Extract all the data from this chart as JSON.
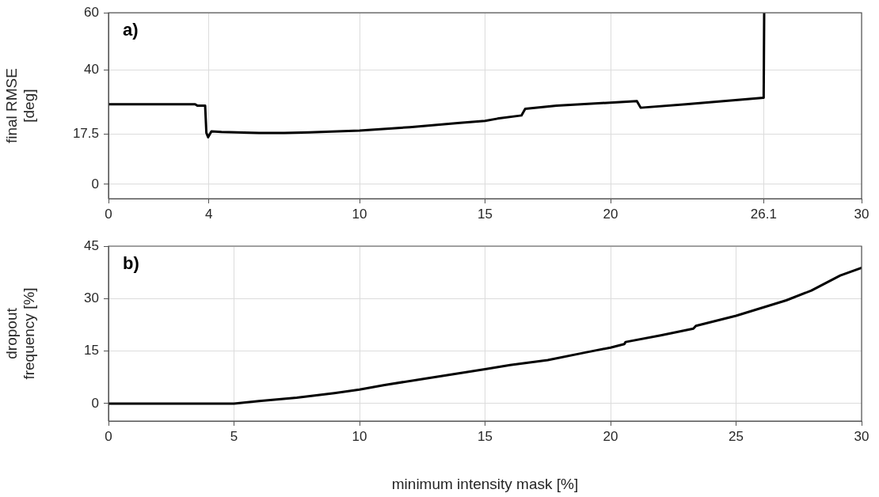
{
  "chart_data": [
    {
      "type": "line",
      "ylabel": "final RMSE [deg]",
      "annotations": [
        "a)"
      ],
      "xlim": [
        0,
        30
      ],
      "xticks": [
        0,
        4,
        10,
        15,
        20,
        26.1,
        30
      ],
      "ylim": [
        -5,
        60
      ],
      "yticks": [
        0,
        17.5,
        40,
        60
      ],
      "grid": true,
      "legend": false,
      "marker": "none",
      "line_style": "solid",
      "series": [
        {
          "color": "#000000",
          "x": [
            0,
            3.45,
            3.55,
            3.85,
            3.9,
            3.97,
            4.1,
            4.5,
            6,
            7,
            8,
            10,
            12,
            14,
            15,
            15.5,
            16.45,
            16.6,
            17.85,
            21.05,
            21.2,
            23,
            26.1,
            26.12
          ],
          "values": [
            28,
            28,
            27.5,
            27.5,
            18,
            16.5,
            18.5,
            18.3,
            18,
            18,
            18.2,
            18.8,
            20,
            21.5,
            22.2,
            23,
            24.1,
            26.4,
            27.5,
            29.1,
            26.8,
            28,
            30.3,
            60
          ]
        }
      ]
    },
    {
      "type": "line",
      "xlabel": "minimum intensity mask [%]",
      "ylabel": "dropout frequency [%]",
      "annotations": [
        "b)"
      ],
      "xlim": [
        0,
        30
      ],
      "xticks": [
        0,
        5,
        10,
        15,
        20,
        25,
        30
      ],
      "ylim": [
        -5,
        45
      ],
      "yticks": [
        0,
        15,
        30,
        45
      ],
      "grid": true,
      "legend": false,
      "marker": "none",
      "line_style": "solid",
      "series": [
        {
          "color": "#000000",
          "x": [
            0,
            5,
            6,
            7.5,
            9,
            10,
            11,
            12.5,
            14,
            15,
            16,
            17.5,
            19,
            20,
            20.55,
            20.6,
            22,
            23.3,
            23.4,
            25,
            26,
            27,
            28,
            29.15,
            30
          ],
          "values": [
            0,
            0,
            0.7,
            1.7,
            3,
            4,
            5.3,
            7,
            8.7,
            9.8,
            11,
            12.4,
            14.6,
            16,
            17,
            17.6,
            19.5,
            21.4,
            22.2,
            25.1,
            27.3,
            29.5,
            32.3,
            36.6,
            38.8
          ]
        }
      ]
    }
  ]
}
